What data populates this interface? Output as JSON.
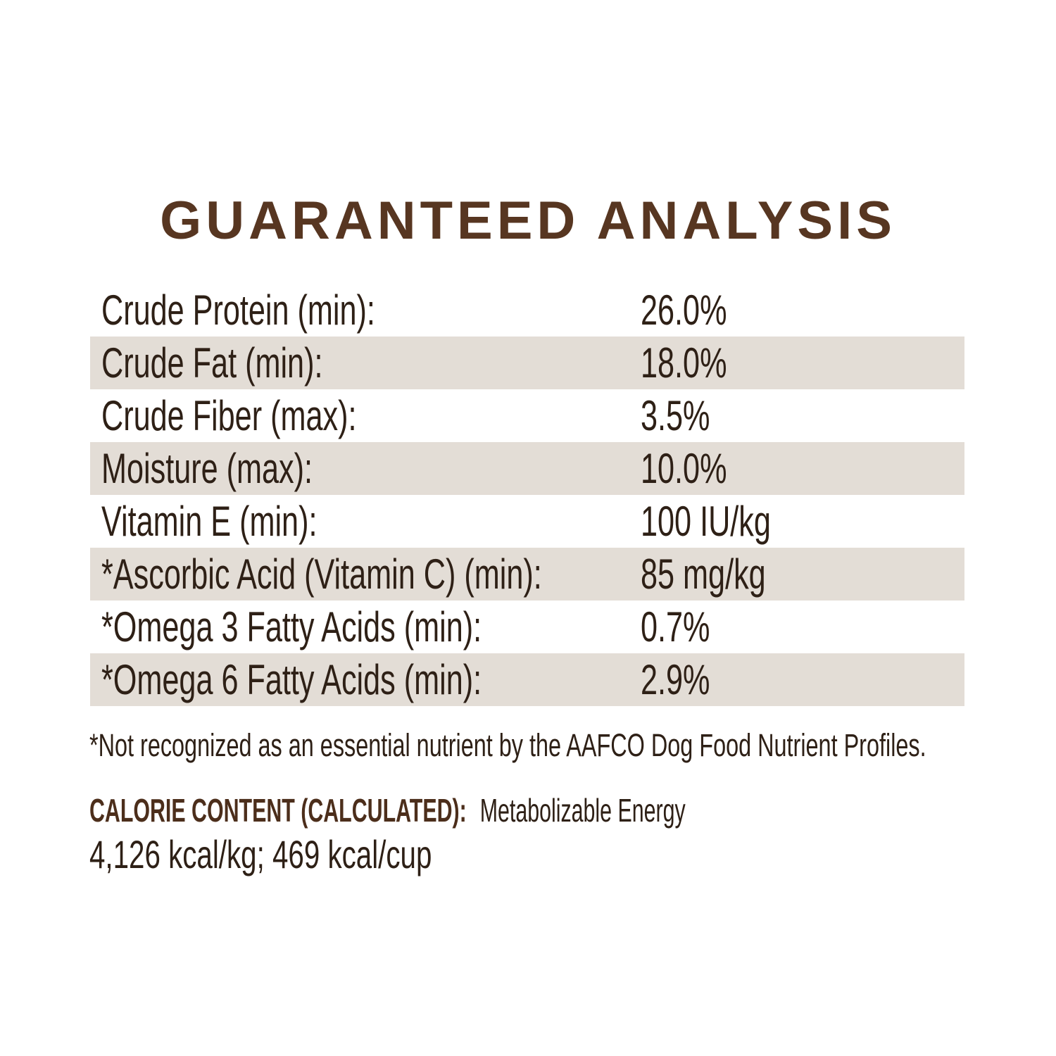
{
  "title": "GUARANTEED ANALYSIS",
  "table": {
    "rows": [
      {
        "label": "Crude Protein (min):",
        "value": "26.0%"
      },
      {
        "label": "Crude Fat (min):",
        "value": "18.0%"
      },
      {
        "label": "Crude Fiber (max):",
        "value": "3.5%"
      },
      {
        "label": "Moisture (max):",
        "value": "10.0%"
      },
      {
        "label": "Vitamin E (min):",
        "value": "100 IU/kg"
      },
      {
        "label": "*Ascorbic Acid (Vitamin C) (min):",
        "value": "85 mg/kg"
      },
      {
        "label": "*Omega 3 Fatty Acids (min):",
        "value": "0.7%"
      },
      {
        "label": "*Omega 6 Fatty Acids (min):",
        "value": "2.9%"
      }
    ]
  },
  "footnote": "*Not recognized as an essential nutrient by the AAFCO Dog Food Nutrient Profiles.",
  "calorie_content": {
    "heading": "CALORIE CONTENT (CALCULATED):",
    "subheading": "Metabolizable Energy",
    "values": "4,126 kcal/kg; 469 kcal/cup"
  },
  "colors": {
    "background": "#ffffff",
    "title_brown": "#573621",
    "heading_brown": "#4c2e1b",
    "text_dark": "#2e2016",
    "row_shade": "#e3ddd6"
  }
}
